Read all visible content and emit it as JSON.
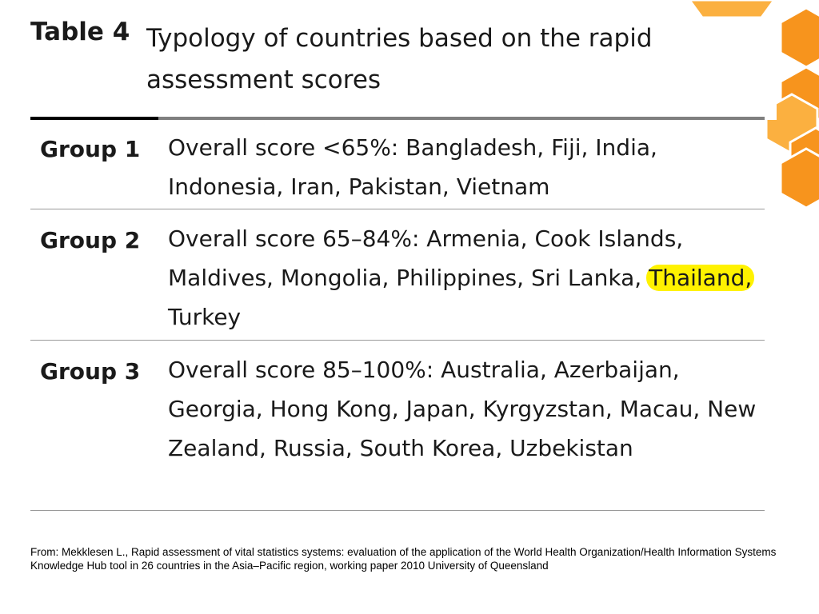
{
  "title": {
    "label": "Table 4",
    "text": "Typology of countries based on the rapid assessment scores"
  },
  "groups": [
    {
      "label": "Group 1",
      "text": "Overall score <65%: Bangladesh, Fiji, India, Indonesia, Iran, Pakistan, Vietnam"
    },
    {
      "label": "Group 2",
      "text_before": "Overall score 65–84%: Armenia, Cook Islands, Maldives, Mongolia, Philippines, Sri Lanka,",
      "highlight": "Thailand,",
      "text_after": "Turkey"
    },
    {
      "label": "Group 3",
      "text": "Overall score 85–100%: Australia, Azerbaijan, Georgia, Hong Kong, Japan, Kyrgyzstan, Macau, New Zealand, Russia, South Korea, Uzbekistan"
    }
  ],
  "footer": "From: Mekklesen L., Rapid assessment of vital statistics systems: evaluation of the application of the World Health Organization/Health Information Systems Knowledge Hub tool in 26 countries in the Asia–Pacific region, working paper 2010 University of Queensland",
  "colors": {
    "highlight": "#fff200",
    "honeycomb_orange": "#f7941d",
    "honeycomb_light": "#fbb040"
  }
}
